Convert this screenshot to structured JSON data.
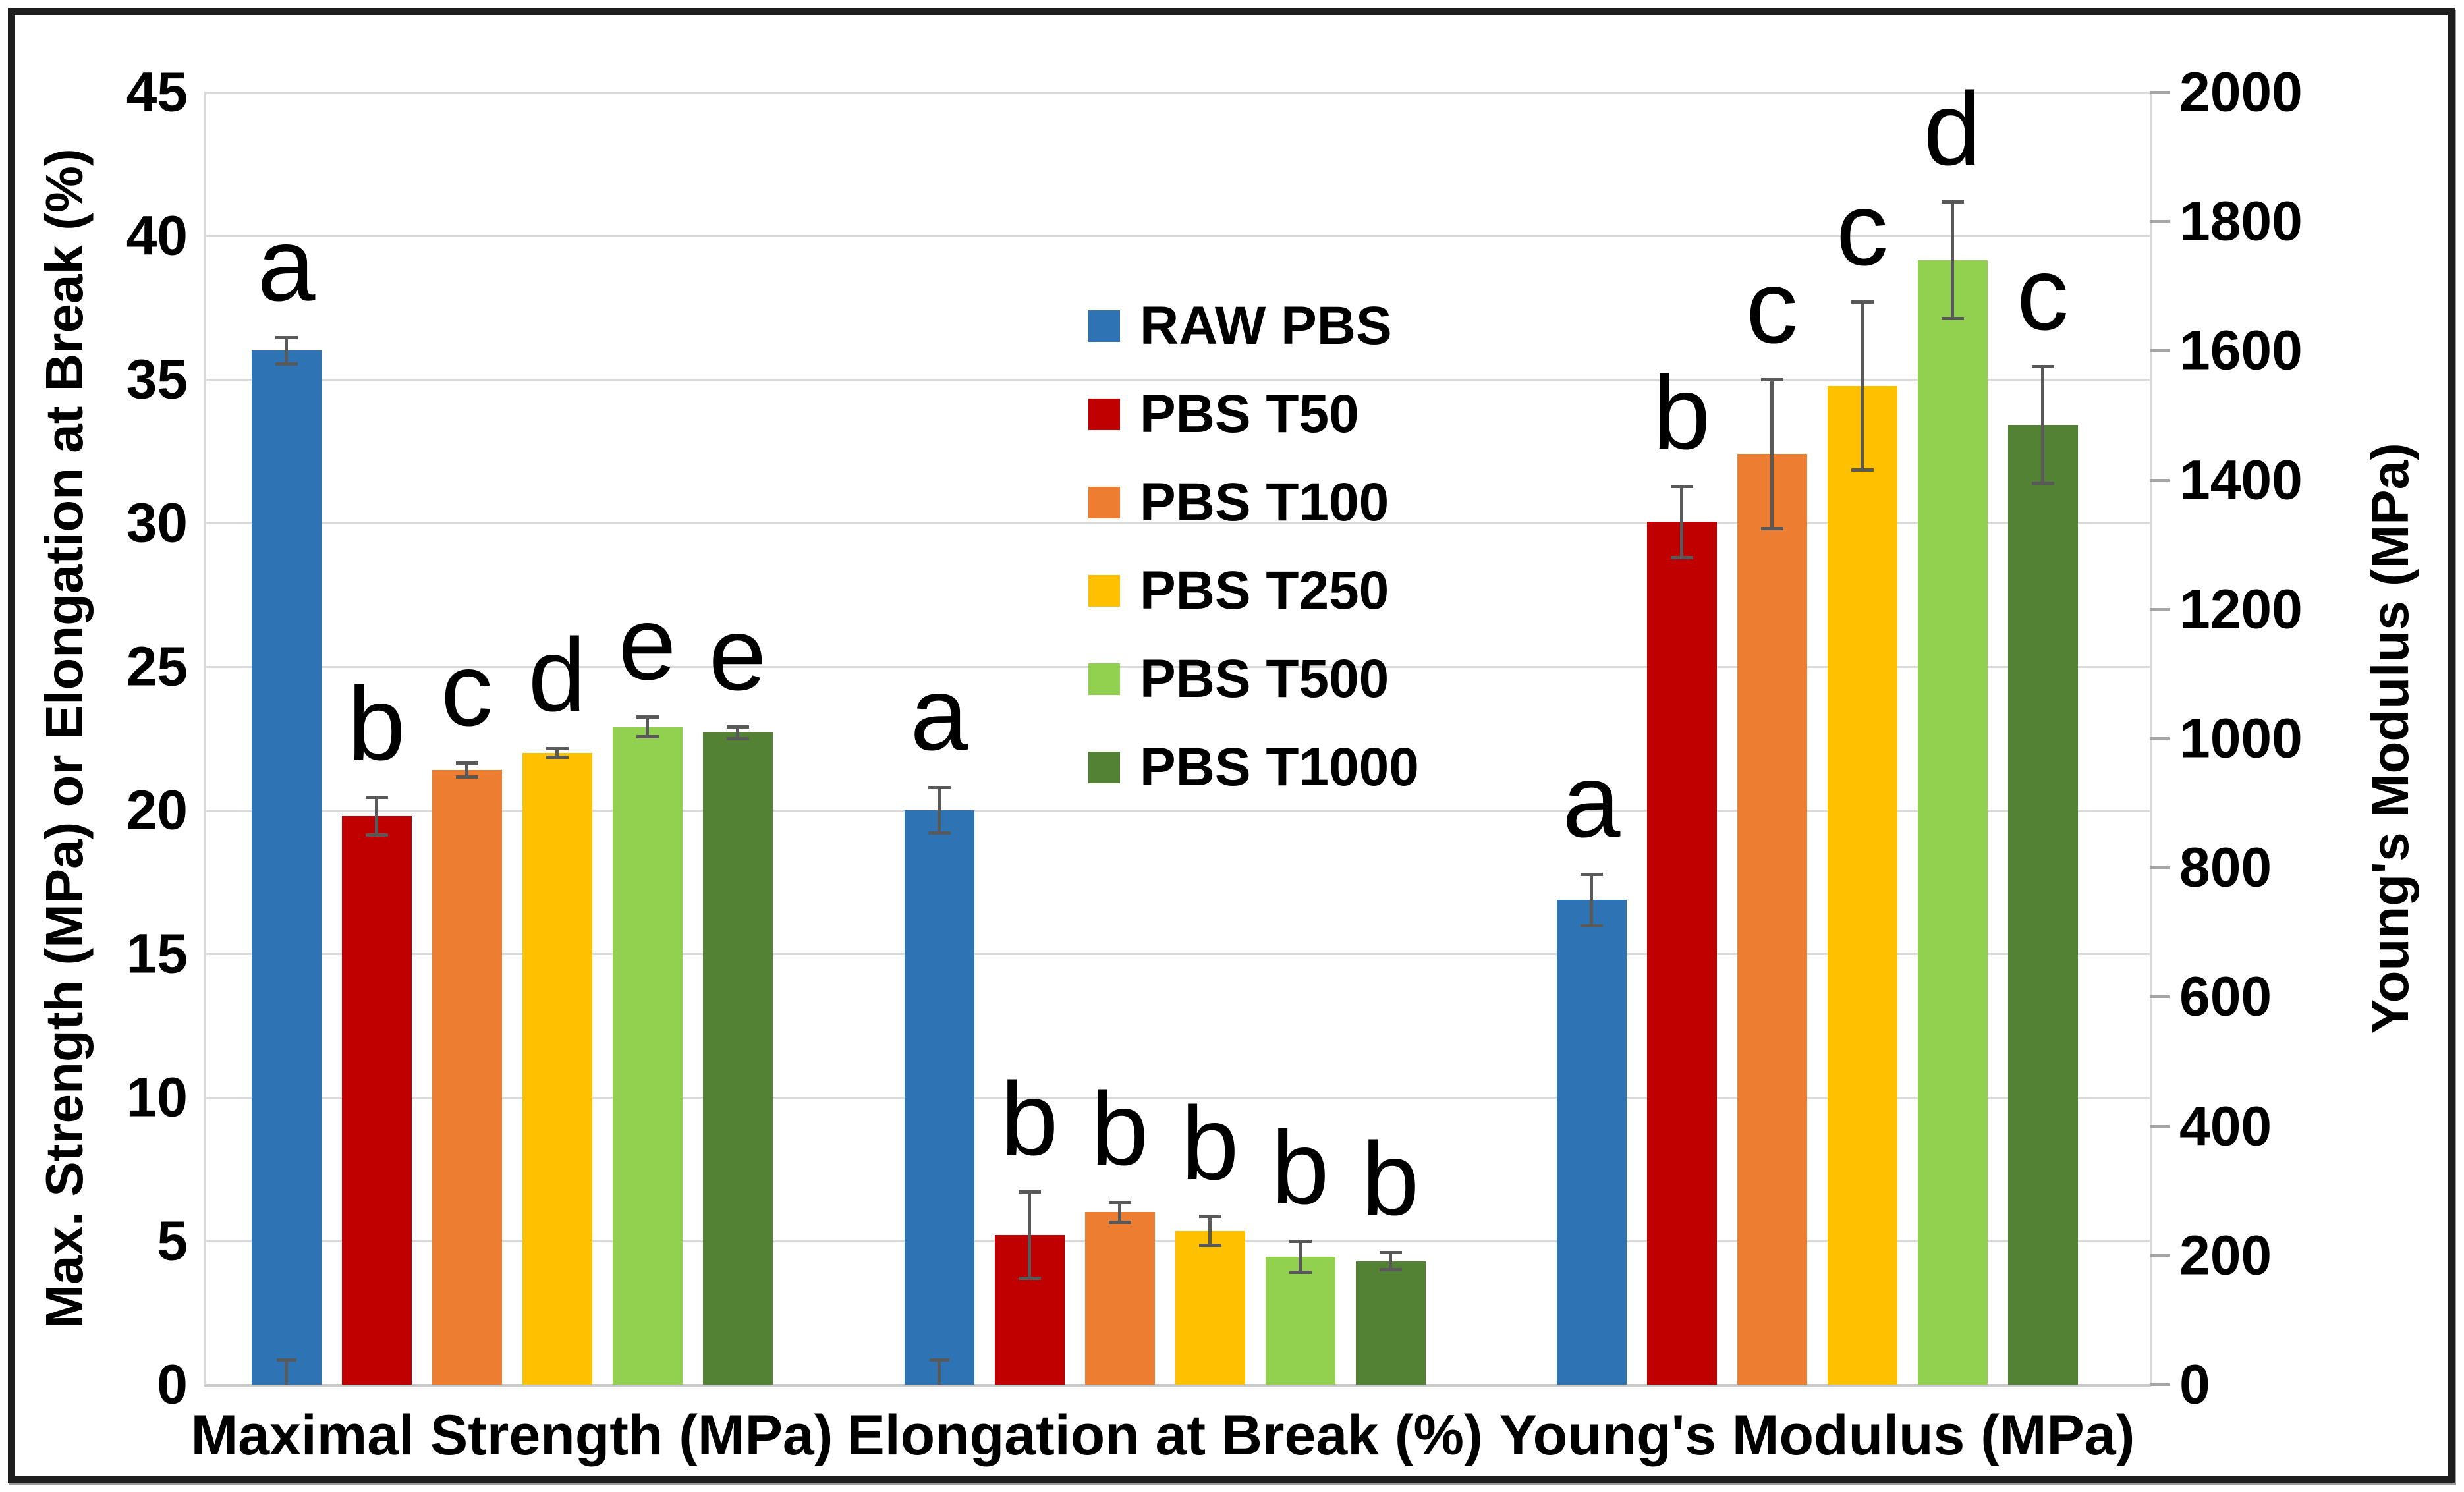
{
  "figure": {
    "background_color": "#ffffff",
    "frame_color": "#1e1e1e",
    "gridline_color": "#d9d9d9",
    "bottom_axis_color": "#c9c9c9",
    "plot_border_color": "#d9d9d9",
    "tick_mark_color": "#a6a6a6",
    "error_bar_color": "#595959",
    "text_color": "#000000"
  },
  "chart_data": {
    "type": "bar",
    "title": "",
    "categories": [
      "Maximal Strength (MPa)",
      "Elongation at Break (%)",
      "Young's Modulus (MPa)"
    ],
    "category_axis": [
      "left",
      "left",
      "right"
    ],
    "series": [
      {
        "name": "RAW PBS",
        "color": "#2e74b5",
        "values": [
          36.0,
          20.0,
          750
        ],
        "errors": [
          0.45,
          0.8,
          40
        ],
        "letters": [
          "a",
          "a",
          "a"
        ]
      },
      {
        "name": "PBS T50",
        "color": "#c00000",
        "values": [
          19.8,
          5.2,
          1335
        ],
        "errors": [
          0.65,
          1.5,
          55
        ],
        "letters": [
          "b",
          "b",
          "b"
        ]
      },
      {
        "name": "PBS T100",
        "color": "#ed7d31",
        "values": [
          21.4,
          6.0,
          1440
        ],
        "errors": [
          0.25,
          0.35,
          115
        ],
        "letters": [
          "c",
          "b",
          "c"
        ]
      },
      {
        "name": "PBS T250",
        "color": "#ffc000",
        "values": [
          22.0,
          5.35,
          1545
        ],
        "errors": [
          0.15,
          0.5,
          130
        ],
        "letters": [
          "d",
          "b",
          "c"
        ]
      },
      {
        "name": "PBS T500",
        "color": "#92d050",
        "values": [
          22.9,
          4.45,
          1740
        ],
        "errors": [
          0.35,
          0.55,
          90
        ],
        "letters": [
          "e",
          "b",
          "d"
        ]
      },
      {
        "name": "PBS T1000",
        "color": "#548235",
        "values": [
          22.7,
          4.3,
          1485
        ],
        "errors": [
          0.2,
          0.3,
          90
        ],
        "letters": [
          "e",
          "b",
          "c"
        ]
      }
    ],
    "left_axis": {
      "title": "Max. Strength (MPa) or Elongation at Break (%)",
      "min": 0,
      "max": 45,
      "step": 5,
      "ticks": [
        0,
        5,
        10,
        15,
        20,
        25,
        30,
        35,
        40,
        45
      ]
    },
    "right_axis": {
      "title": "Young's Modulus (MPa)",
      "min": 0,
      "max": 2000,
      "step": 200,
      "ticks": [
        0,
        200,
        400,
        600,
        800,
        1000,
        1200,
        1400,
        1600,
        1800,
        2000
      ]
    },
    "legend": {
      "entries": [
        "RAW PBS",
        "PBS T50",
        "PBS T100",
        "PBS T250",
        "PBS T500",
        "PBS T1000"
      ],
      "position": "inside-upper-middle"
    },
    "grid": true,
    "error_bars": true,
    "stray_whiskers": [
      {
        "category_index": 0,
        "series_index": 0,
        "top_value": 0.85
      },
      {
        "category_index": 1,
        "series_index": 0,
        "top_value": 0.85
      }
    ]
  }
}
